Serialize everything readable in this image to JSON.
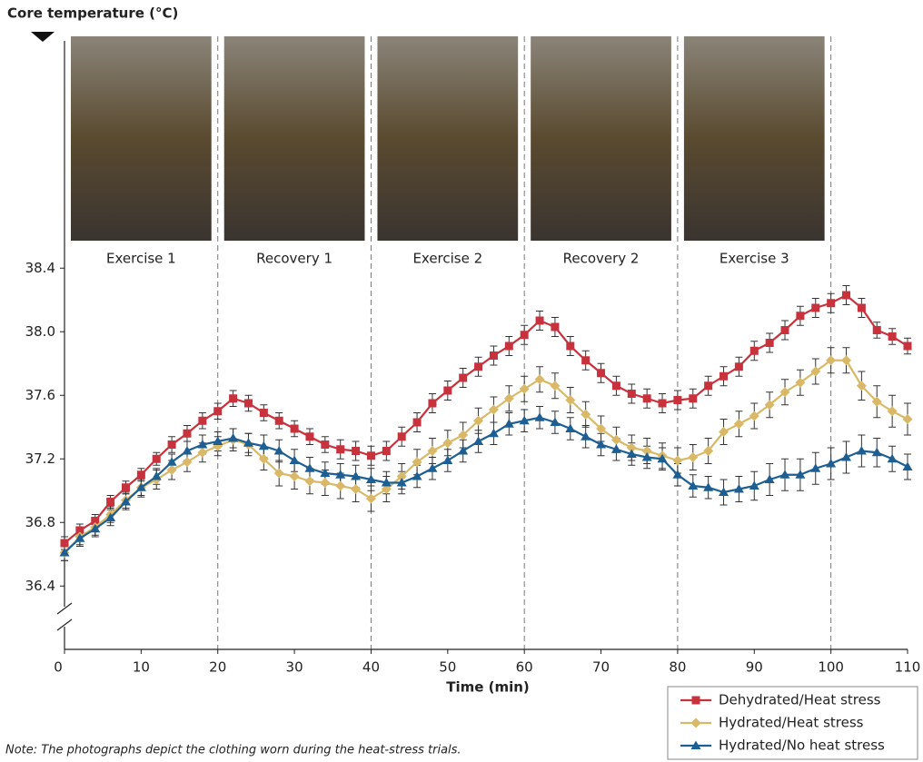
{
  "chart_data": {
    "type": "line",
    "y_label": "Core temperature (°C)",
    "x_label": "Time (min)",
    "note": "Note: The photographs depict the clothing worn during the heat-stress trials.",
    "phases": [
      "Exercise 1",
      "Recovery 1",
      "Exercise 2",
      "Recovery 2",
      "Exercise 3"
    ],
    "phase_boundaries": [
      20,
      40,
      60,
      80,
      100
    ],
    "x": [
      0,
      2,
      4,
      6,
      8,
      10,
      12,
      14,
      16,
      18,
      20,
      22,
      24,
      26,
      28,
      30,
      32,
      34,
      36,
      38,
      40,
      42,
      44,
      46,
      48,
      50,
      52,
      54,
      56,
      58,
      60,
      62,
      64,
      66,
      68,
      70,
      72,
      74,
      76,
      78,
      80,
      82,
      84,
      86,
      88,
      90,
      92,
      94,
      96,
      98,
      100,
      102,
      104,
      106,
      108,
      110
    ],
    "xlim": [
      0,
      110
    ],
    "xticks": [
      0,
      10,
      20,
      30,
      40,
      50,
      60,
      70,
      80,
      90,
      100,
      110
    ],
    "ylim": [
      36.31,
      39.83
    ],
    "yticks": [
      36.4,
      36.8,
      37.2,
      37.6,
      {
        "value": 38,
        "label": "38.0"
      },
      38.4
    ],
    "legend": "bottom-right",
    "series": [
      {
        "name": "Dehydrated/Heat stress",
        "color": "#c8323c",
        "marker": "square",
        "values": [
          36.67,
          36.75,
          36.81,
          36.93,
          37.02,
          37.1,
          37.2,
          37.29,
          37.36,
          37.44,
          37.5,
          37.58,
          37.55,
          37.49,
          37.44,
          37.39,
          37.34,
          37.29,
          37.26,
          37.25,
          37.22,
          37.25,
          37.34,
          37.43,
          37.55,
          37.63,
          37.71,
          37.78,
          37.85,
          37.91,
          37.98,
          38.07,
          38.03,
          37.91,
          37.82,
          37.74,
          37.66,
          37.61,
          37.58,
          37.55,
          37.57,
          37.58,
          37.66,
          37.72,
          37.78,
          37.88,
          37.93,
          38.01,
          38.1,
          38.15,
          38.18,
          38.23,
          38.15,
          38.01,
          37.97,
          37.91
        ],
        "error": [
          0.04,
          0.04,
          0.04,
          0.04,
          0.04,
          0.04,
          0.04,
          0.05,
          0.05,
          0.05,
          0.05,
          0.05,
          0.05,
          0.05,
          0.05,
          0.05,
          0.05,
          0.05,
          0.06,
          0.06,
          0.06,
          0.06,
          0.06,
          0.06,
          0.06,
          0.06,
          0.06,
          0.06,
          0.06,
          0.06,
          0.06,
          0.06,
          0.06,
          0.06,
          0.06,
          0.06,
          0.06,
          0.06,
          0.06,
          0.06,
          0.06,
          0.06,
          0.06,
          0.06,
          0.06,
          0.06,
          0.06,
          0.06,
          0.06,
          0.06,
          0.06,
          0.06,
          0.06,
          0.05,
          0.05,
          0.05
        ]
      },
      {
        "name": "Hydrated/Heat stress",
        "color": "#d9b968",
        "marker": "diamond",
        "values": [
          36.61,
          36.71,
          36.77,
          36.85,
          36.94,
          37.02,
          37.07,
          37.13,
          37.18,
          37.24,
          37.28,
          37.32,
          37.29,
          37.2,
          37.11,
          37.09,
          37.06,
          37.05,
          37.03,
          37.01,
          36.95,
          37.01,
          37.09,
          37.18,
          37.25,
          37.3,
          37.35,
          37.44,
          37.51,
          37.58,
          37.64,
          37.7,
          37.66,
          37.57,
          37.48,
          37.39,
          37.32,
          37.27,
          37.25,
          37.22,
          37.19,
          37.21,
          37.25,
          37.37,
          37.42,
          37.47,
          37.54,
          37.62,
          37.68,
          37.75,
          37.82,
          37.82,
          37.66,
          37.56,
          37.5,
          37.45
        ],
        "error": [
          0.05,
          0.05,
          0.05,
          0.05,
          0.05,
          0.06,
          0.06,
          0.06,
          0.06,
          0.06,
          0.06,
          0.07,
          0.07,
          0.07,
          0.08,
          0.08,
          0.08,
          0.08,
          0.08,
          0.08,
          0.08,
          0.08,
          0.08,
          0.08,
          0.08,
          0.08,
          0.08,
          0.08,
          0.08,
          0.08,
          0.08,
          0.08,
          0.08,
          0.08,
          0.08,
          0.08,
          0.08,
          0.08,
          0.08,
          0.08,
          0.08,
          0.08,
          0.08,
          0.08,
          0.08,
          0.08,
          0.08,
          0.08,
          0.08,
          0.08,
          0.08,
          0.08,
          0.09,
          0.1,
          0.1,
          0.1
        ]
      },
      {
        "name": "Hydrated/No heat stress",
        "color": "#1d5f93",
        "marker": "triangle",
        "values": [
          36.61,
          36.7,
          36.76,
          36.83,
          36.93,
          37.02,
          37.09,
          37.18,
          37.25,
          37.29,
          37.31,
          37.33,
          37.3,
          37.28,
          37.25,
          37.19,
          37.14,
          37.11,
          37.1,
          37.09,
          37.07,
          37.05,
          37.05,
          37.09,
          37.14,
          37.19,
          37.25,
          37.31,
          37.36,
          37.42,
          37.44,
          37.46,
          37.43,
          37.39,
          37.34,
          37.29,
          37.26,
          37.23,
          37.21,
          37.2,
          37.1,
          37.03,
          37.02,
          36.99,
          37.01,
          37.03,
          37.07,
          37.1,
          37.1,
          37.14,
          37.17,
          37.21,
          37.25,
          37.24,
          37.2,
          37.15
        ],
        "error": [
          0.05,
          0.05,
          0.05,
          0.05,
          0.05,
          0.05,
          0.05,
          0.05,
          0.06,
          0.06,
          0.06,
          0.06,
          0.06,
          0.07,
          0.07,
          0.07,
          0.07,
          0.07,
          0.07,
          0.07,
          0.07,
          0.07,
          0.07,
          0.07,
          0.07,
          0.07,
          0.07,
          0.07,
          0.07,
          0.07,
          0.07,
          0.07,
          0.07,
          0.07,
          0.07,
          0.07,
          0.07,
          0.07,
          0.07,
          0.07,
          0.07,
          0.07,
          0.07,
          0.08,
          0.08,
          0.09,
          0.1,
          0.1,
          0.1,
          0.1,
          0.1,
          0.1,
          0.1,
          0.09,
          0.08,
          0.08
        ]
      }
    ]
  }
}
